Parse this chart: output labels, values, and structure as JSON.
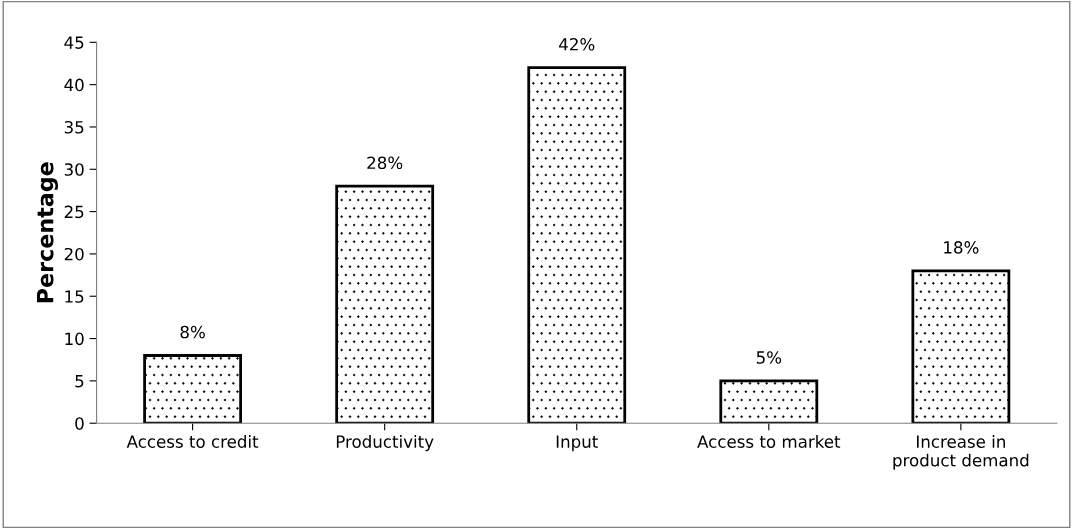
{
  "chart_data": {
    "type": "bar",
    "ylabel": "Percentage",
    "categories": [
      "Access to credit",
      "Productivity",
      "Input",
      "Access to market",
      "Increase in\nproduct demand"
    ],
    "values": [
      8,
      28,
      42,
      5,
      18
    ],
    "value_labels": [
      "8%",
      "28%",
      "42%",
      "5%",
      "18%"
    ],
    "color": "#000000",
    "ylim": [
      0,
      45
    ],
    "yticks": [
      0,
      5,
      10,
      15,
      20,
      25,
      30,
      35,
      40,
      45
    ],
    "grid": false
  }
}
